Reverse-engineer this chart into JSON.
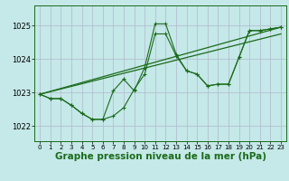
{
  "background_color": "#c5e8e8",
  "grid_color": "#b0b8cc",
  "line_color": "#1a6b1a",
  "xlabel": "Graphe pression niveau de la mer (hPa)",
  "xlabel_fontsize": 7.5,
  "yticks": [
    1022,
    1023,
    1024,
    1025
  ],
  "xlim": [
    -0.5,
    23.5
  ],
  "ylim": [
    1021.55,
    1025.6
  ],
  "series_jagged": {
    "x": [
      0,
      1,
      2,
      3,
      4,
      5,
      6,
      7,
      8,
      9,
      10,
      11,
      12,
      13,
      14,
      15,
      16,
      17,
      18,
      19,
      20,
      21,
      22,
      23
    ],
    "y": [
      1022.95,
      1022.82,
      1022.82,
      1022.62,
      1022.38,
      1022.2,
      1022.2,
      1023.05,
      1023.4,
      1023.05,
      1023.75,
      1025.05,
      1025.05,
      1024.15,
      1023.65,
      1023.55,
      1023.2,
      1023.25,
      1023.25,
      1024.05,
      1024.85,
      1024.85,
      1024.9,
      1024.95
    ]
  },
  "series_smooth": {
    "x": [
      0,
      1,
      2,
      3,
      4,
      5,
      6,
      7,
      8,
      9,
      10,
      11,
      12,
      13,
      14,
      15,
      16,
      17,
      18,
      19,
      20,
      21,
      22,
      23
    ],
    "y": [
      1022.95,
      1022.82,
      1022.82,
      1022.62,
      1022.38,
      1022.2,
      1022.2,
      1022.3,
      1022.55,
      1023.1,
      1023.55,
      1024.75,
      1024.75,
      1024.1,
      1023.65,
      1023.55,
      1023.2,
      1023.25,
      1023.25,
      1024.05,
      1024.85,
      1024.85,
      1024.9,
      1024.95
    ]
  },
  "series_trend": {
    "x": [
      0,
      23
    ],
    "y": [
      1022.95,
      1024.95
    ]
  },
  "series_trend2": {
    "x": [
      0,
      23
    ],
    "y": [
      1022.95,
      1024.75
    ]
  }
}
